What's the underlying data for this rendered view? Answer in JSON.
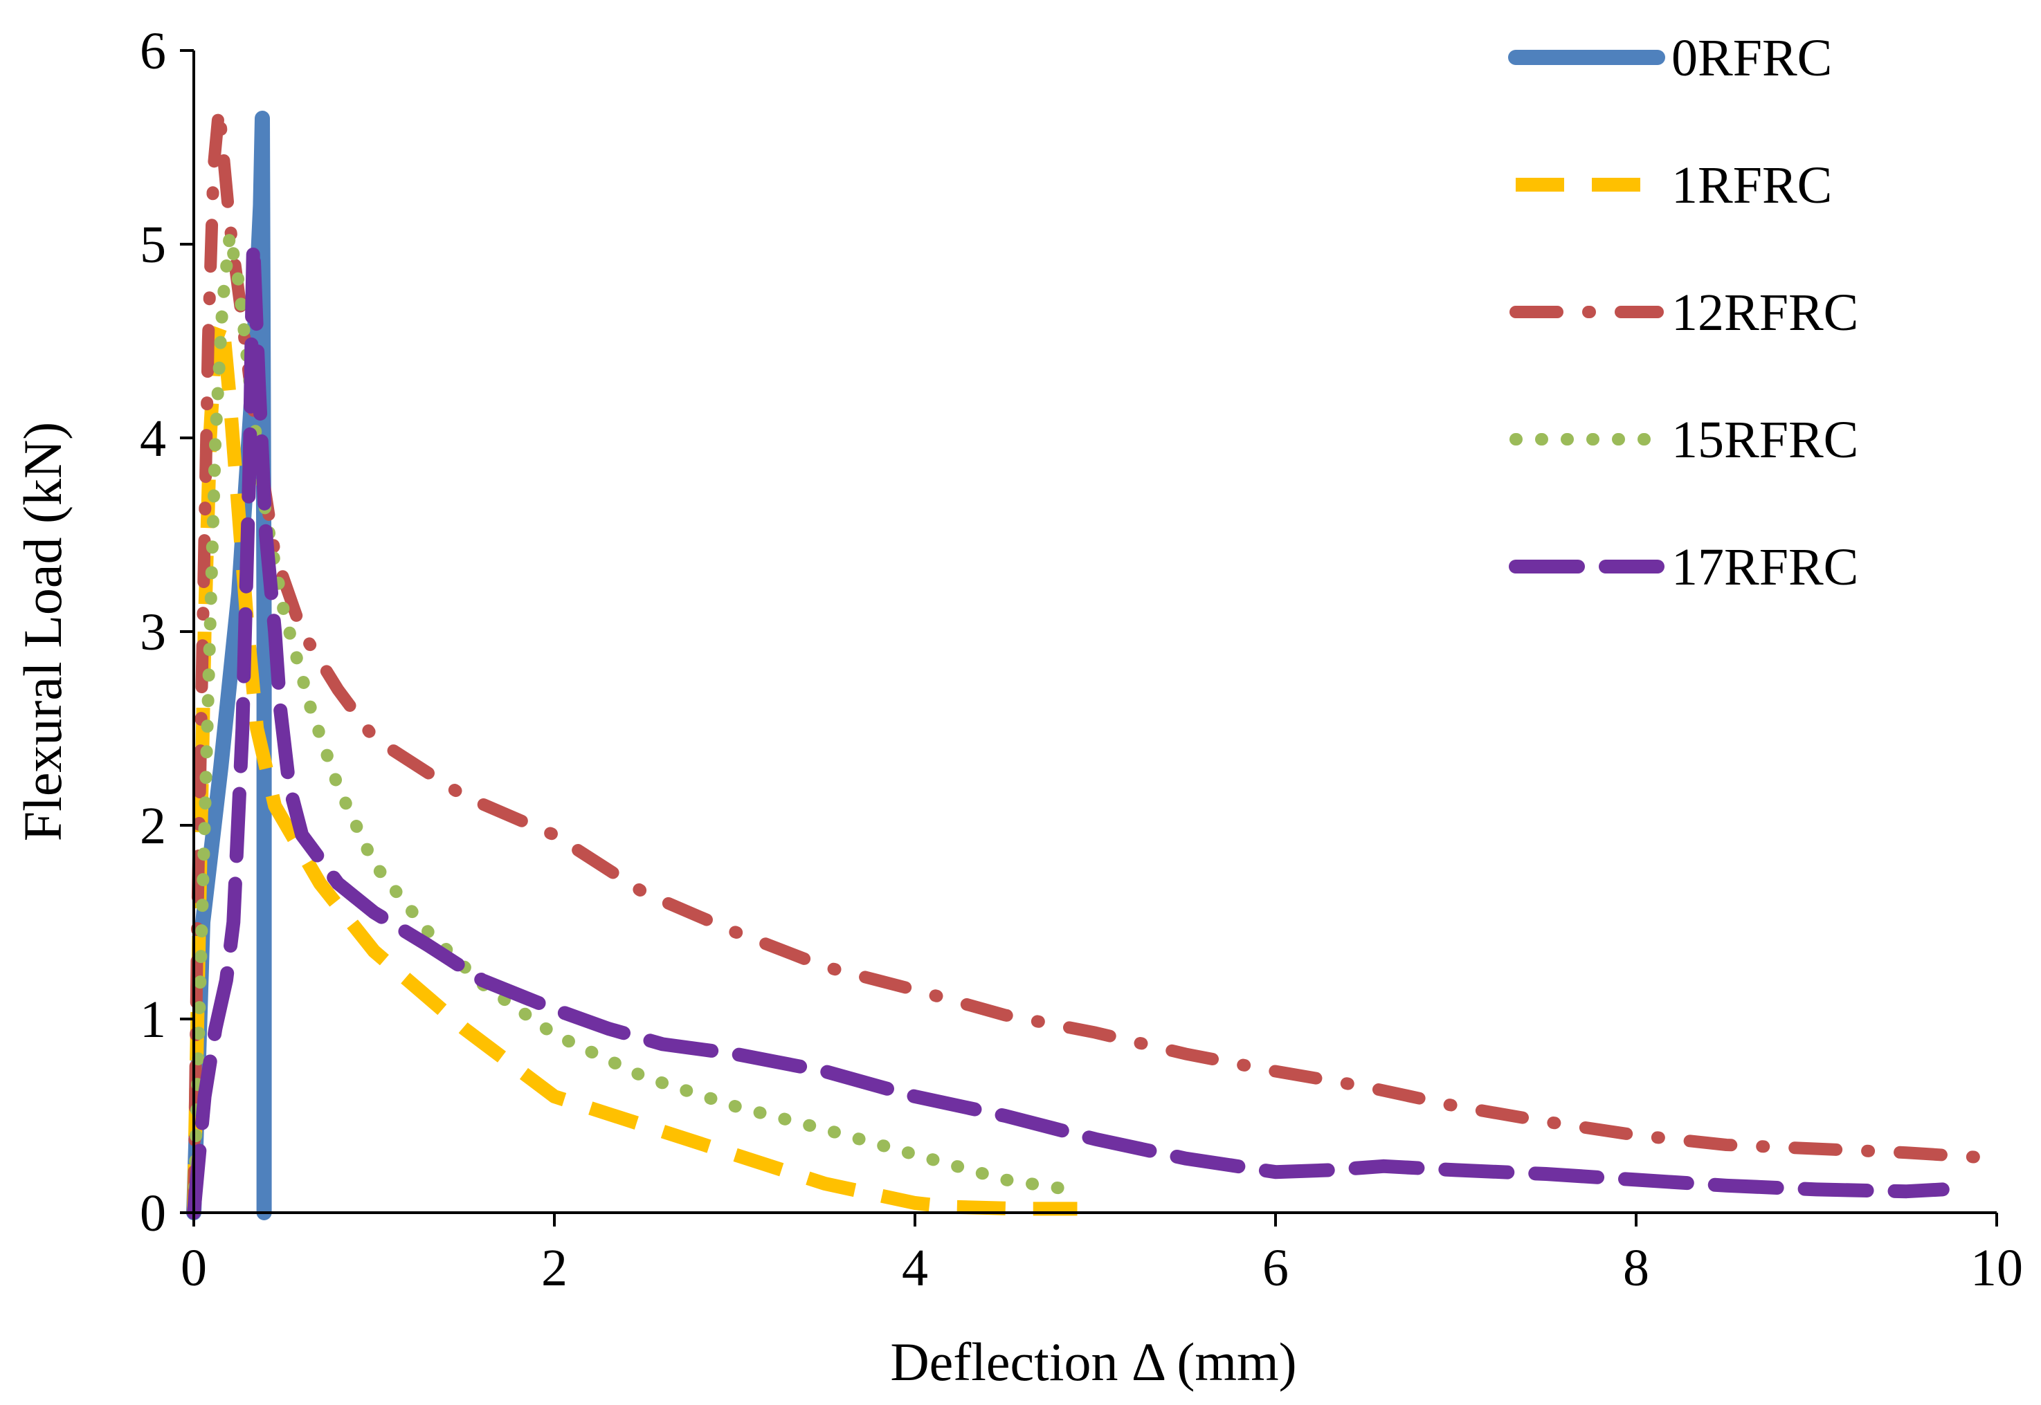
{
  "chart_data": {
    "type": "line",
    "title": "",
    "xlabel": "Deflection Δ (mm)",
    "ylabel": "Flexural Load (kN)",
    "xlim": [
      0,
      10
    ],
    "ylim": [
      0,
      6
    ],
    "xticks": [
      0,
      2,
      4,
      6,
      8,
      10
    ],
    "yticks": [
      0,
      1,
      2,
      3,
      4,
      5,
      6
    ],
    "grid": false,
    "legend_position": "top-right",
    "series": [
      {
        "name": "0RFRC",
        "color": "#4F81BD",
        "style": "solid-thick",
        "points": [
          [
            0,
            0
          ],
          [
            0.05,
            1.5
          ],
          [
            0.15,
            2.3
          ],
          [
            0.25,
            3.2
          ],
          [
            0.32,
            4.2
          ],
          [
            0.37,
            5.2
          ],
          [
            0.38,
            5.65
          ],
          [
            0.39,
            3.0
          ],
          [
            0.39,
            0
          ]
        ]
      },
      {
        "name": "1RFRC",
        "color": "#FFC000",
        "style": "dash",
        "points": [
          [
            0,
            0
          ],
          [
            0.02,
            1.0
          ],
          [
            0.04,
            2.0
          ],
          [
            0.06,
            3.0
          ],
          [
            0.09,
            4.0
          ],
          [
            0.12,
            4.5
          ],
          [
            0.16,
            4.6
          ],
          [
            0.2,
            4.2
          ],
          [
            0.25,
            3.6
          ],
          [
            0.3,
            3.0
          ],
          [
            0.35,
            2.5
          ],
          [
            0.45,
            2.1
          ],
          [
            0.7,
            1.7
          ],
          [
            1.0,
            1.35
          ],
          [
            1.5,
            0.95
          ],
          [
            2.0,
            0.6
          ],
          [
            3.0,
            0.3
          ],
          [
            3.5,
            0.15
          ],
          [
            4.0,
            0.05
          ],
          [
            4.2,
            0.03
          ],
          [
            4.6,
            0.02
          ],
          [
            4.9,
            0.02
          ]
        ]
      },
      {
        "name": "12RFRC",
        "color": "#C0504D",
        "style": "dash-dot",
        "points": [
          [
            0,
            0
          ],
          [
            0.02,
            1.5
          ],
          [
            0.05,
            3.0
          ],
          [
            0.08,
            4.5
          ],
          [
            0.11,
            5.4
          ],
          [
            0.14,
            5.7
          ],
          [
            0.17,
            5.4
          ],
          [
            0.2,
            5.1
          ],
          [
            0.27,
            4.6
          ],
          [
            0.35,
            4.0
          ],
          [
            0.45,
            3.4
          ],
          [
            0.6,
            3.0
          ],
          [
            0.8,
            2.7
          ],
          [
            1.0,
            2.45
          ],
          [
            1.5,
            2.15
          ],
          [
            2.0,
            1.95
          ],
          [
            2.5,
            1.65
          ],
          [
            3.0,
            1.45
          ],
          [
            3.5,
            1.27
          ],
          [
            4.0,
            1.15
          ],
          [
            4.5,
            1.02
          ],
          [
            5.0,
            0.93
          ],
          [
            5.5,
            0.82
          ],
          [
            6.0,
            0.73
          ],
          [
            6.5,
            0.65
          ],
          [
            7.0,
            0.55
          ],
          [
            7.5,
            0.47
          ],
          [
            8.0,
            0.4
          ],
          [
            8.5,
            0.35
          ],
          [
            9.0,
            0.33
          ],
          [
            9.5,
            0.31
          ],
          [
            10.0,
            0.28
          ]
        ]
      },
      {
        "name": "15RFRC",
        "color": "#9BBB59",
        "style": "dot",
        "points": [
          [
            0,
            0
          ],
          [
            0.03,
            1.0
          ],
          [
            0.06,
            2.0
          ],
          [
            0.09,
            3.0
          ],
          [
            0.12,
            4.0
          ],
          [
            0.16,
            4.7
          ],
          [
            0.2,
            5.05
          ],
          [
            0.25,
            4.8
          ],
          [
            0.32,
            4.2
          ],
          [
            0.4,
            3.6
          ],
          [
            0.5,
            3.1
          ],
          [
            0.65,
            2.6
          ],
          [
            0.8,
            2.2
          ],
          [
            1.0,
            1.8
          ],
          [
            1.3,
            1.45
          ],
          [
            1.6,
            1.18
          ],
          [
            2.0,
            0.92
          ],
          [
            2.5,
            0.7
          ],
          [
            3.0,
            0.55
          ],
          [
            3.5,
            0.43
          ],
          [
            4.0,
            0.3
          ],
          [
            4.5,
            0.17
          ],
          [
            4.85,
            0.12
          ]
        ]
      },
      {
        "name": "17RFRC",
        "color": "#7030A0",
        "style": "long-dash",
        "points": [
          [
            0,
            0
          ],
          [
            0.03,
            0.3
          ],
          [
            0.06,
            0.6
          ],
          [
            0.12,
            0.95
          ],
          [
            0.18,
            1.2
          ],
          [
            0.22,
            1.5
          ],
          [
            0.25,
            2.1
          ],
          [
            0.27,
            2.5
          ],
          [
            0.29,
            3.2
          ],
          [
            0.31,
            3.9
          ],
          [
            0.32,
            4.5
          ],
          [
            0.33,
            5.0
          ],
          [
            0.36,
            4.3
          ],
          [
            0.4,
            3.5
          ],
          [
            0.45,
            3.0
          ],
          [
            0.48,
            2.6
          ],
          [
            0.53,
            2.2
          ],
          [
            0.6,
            1.95
          ],
          [
            0.8,
            1.7
          ],
          [
            1.0,
            1.55
          ],
          [
            1.3,
            1.38
          ],
          [
            1.6,
            1.2
          ],
          [
            2.0,
            1.05
          ],
          [
            2.3,
            0.95
          ],
          [
            2.6,
            0.87
          ],
          [
            3.0,
            0.82
          ],
          [
            3.5,
            0.73
          ],
          [
            4.0,
            0.6
          ],
          [
            4.5,
            0.5
          ],
          [
            5.0,
            0.38
          ],
          [
            5.5,
            0.28
          ],
          [
            6.0,
            0.21
          ],
          [
            6.3,
            0.22
          ],
          [
            6.6,
            0.24
          ],
          [
            7.0,
            0.22
          ],
          [
            7.5,
            0.2
          ],
          [
            8.0,
            0.17
          ],
          [
            8.5,
            0.14
          ],
          [
            9.0,
            0.12
          ],
          [
            9.5,
            0.11
          ],
          [
            9.7,
            0.12
          ]
        ]
      }
    ]
  }
}
